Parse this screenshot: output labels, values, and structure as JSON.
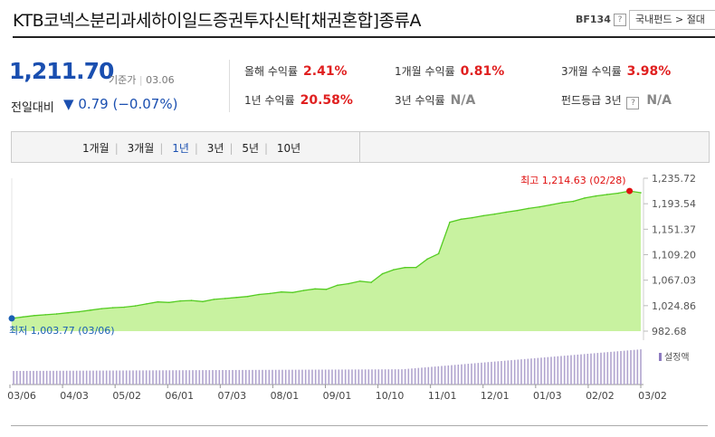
{
  "header": {
    "title": "KTB코넥스분리과세하이일드증권투자신탁[채권혼합]종류A",
    "code": "BF134",
    "help_icon": "?",
    "breadcrumb": "국내펀드 > 절대"
  },
  "price": {
    "value": "1,211.70",
    "basis_label": "기준가",
    "date": "03.06",
    "change_label": "전일대비",
    "change_arrow": "▼",
    "change_value": "0.79 (−0.07%)"
  },
  "metrics": [
    {
      "label": "올해 수익률",
      "value": "2.41%",
      "color": "#e02020"
    },
    {
      "label": "1개월 수익률",
      "value": "0.81%",
      "color": "#e02020"
    },
    {
      "label": "3개월 수익률",
      "value": "3.98%",
      "color": "#e02020"
    },
    {
      "label": "1년 수익률",
      "value": "20.58%",
      "color": "#e02020"
    },
    {
      "label": "3년 수익률",
      "value": "N/A",
      "color": "#888888"
    },
    {
      "label": "펀드등급 3년",
      "value": "N/A",
      "color": "#888888"
    }
  ],
  "periods": [
    "1개월",
    "3개월",
    "1년",
    "3년",
    "5년",
    "10년"
  ],
  "active_period": "1년",
  "chart_data": {
    "type": "area",
    "ylim": [
      982.68,
      1235.72
    ],
    "y_ticks": [
      "1,235.72",
      "1,193.54",
      "1,151.37",
      "1,109.20",
      "1,067.03",
      "1,024.86",
      "982.68"
    ],
    "x_tick_labels": [
      "03/06",
      "04/03",
      "05/02",
      "06/01",
      "07/03",
      "08/01",
      "09/01",
      "10/10",
      "11/01",
      "12/01",
      "01/03",
      "02/02",
      "03/02"
    ],
    "series": [
      {
        "values": [
          1003.77,
          1006.2,
          1008.5,
          1009.8,
          1011.2,
          1013.0,
          1014.8,
          1017.4,
          1019.9,
          1021.5,
          1022.3,
          1024.5,
          1027.8,
          1031.0,
          1030.2,
          1032.7,
          1033.5,
          1031.6,
          1035.2,
          1036.7,
          1038.4,
          1040.1,
          1043.3,
          1045.0,
          1047.5,
          1046.6,
          1050.0,
          1052.6,
          1051.8,
          1058.6,
          1061.3,
          1065.4,
          1063.4,
          1077.6,
          1084.4,
          1087.9,
          1088.1,
          1102.0,
          1110.9,
          1162.9,
          1167.9,
          1170.5,
          1173.7,
          1176.5,
          1179.5,
          1182.3,
          1185.7,
          1188.4,
          1191.7,
          1195.3,
          1197.5,
          1202.9,
          1206.4,
          1208.8,
          1211.0,
          1214.63,
          1211.7
        ]
      }
    ],
    "annotations": {
      "max_label": "최고 1,214.63 (02/28)",
      "min_label": "최저 1,003.77 (03/06)"
    },
    "volume_legend": "설정액",
    "line_color": "#55cc22",
    "fill_color": "#c8f2a0"
  }
}
